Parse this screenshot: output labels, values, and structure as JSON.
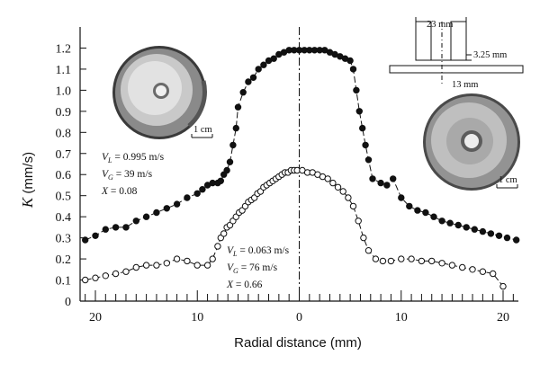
{
  "chart_data": {
    "type": "scatter",
    "xlabel": "Radial distance (mm)",
    "ylabel": "K (mm/s)",
    "ylabel_symbol": "K",
    "ylabel_unit": "(mm/s)",
    "xlim": [
      -21.5,
      21.5
    ],
    "ylim": [
      0,
      1.3
    ],
    "x_tick_values": [
      -20,
      -10,
      0,
      10,
      20
    ],
    "x_tick_labels": [
      "20",
      "10",
      "0",
      "10",
      "20"
    ],
    "x_minor_step": 1,
    "y_ticks": [
      0,
      0.1,
      0.2,
      0.3,
      0.4,
      0.5,
      0.6,
      0.7,
      0.8,
      0.9,
      1.0,
      1.1,
      1.2
    ],
    "y_tick_labels": [
      "0",
      "0.1",
      "0.2",
      "0.3",
      "0.4",
      "0.5",
      "0.6",
      "0.7",
      "0.8",
      "0.9",
      "1.0",
      "1.1",
      "1.2"
    ],
    "grid": false,
    "center_line_x": 0,
    "series": [
      {
        "marker": "filled-circle",
        "x": [
          -21.0,
          -20.0,
          -19.0,
          -18.0,
          -17.0,
          -16.0,
          -15.0,
          -14.0,
          -13.0,
          -12.0,
          -11.0,
          -10.0,
          -9.5,
          -9.0,
          -8.5,
          -8.0,
          -7.7,
          -7.4,
          -7.1,
          -6.8,
          -6.5,
          -6.2,
          -6.0,
          -5.5,
          -5.0,
          -4.5,
          -4.0,
          -3.5,
          -3.0,
          -2.5,
          -2.0,
          -1.5,
          -1.0,
          -0.5,
          0.0,
          0.5,
          1.0,
          1.5,
          2.0,
          2.5,
          3.0,
          3.5,
          4.0,
          4.5,
          5.0,
          5.3,
          5.6,
          5.9,
          6.2,
          6.5,
          6.8,
          7.2,
          8.0,
          8.6,
          9.2,
          10.0,
          10.8,
          11.6,
          12.4,
          13.2,
          14.0,
          14.8,
          15.6,
          16.4,
          17.2,
          18.0,
          18.8,
          19.6,
          20.4,
          21.3
        ],
        "y": [
          0.29,
          0.31,
          0.34,
          0.35,
          0.35,
          0.38,
          0.4,
          0.42,
          0.44,
          0.46,
          0.49,
          0.51,
          0.53,
          0.55,
          0.56,
          0.56,
          0.57,
          0.6,
          0.62,
          0.66,
          0.74,
          0.82,
          0.92,
          0.99,
          1.04,
          1.06,
          1.1,
          1.12,
          1.14,
          1.15,
          1.17,
          1.18,
          1.19,
          1.19,
          1.19,
          1.19,
          1.19,
          1.19,
          1.19,
          1.19,
          1.18,
          1.17,
          1.16,
          1.15,
          1.14,
          1.1,
          1.0,
          0.9,
          0.82,
          0.74,
          0.67,
          0.58,
          0.56,
          0.55,
          0.58,
          0.49,
          0.45,
          0.43,
          0.42,
          0.4,
          0.38,
          0.37,
          0.36,
          0.35,
          0.34,
          0.33,
          0.32,
          0.31,
          0.3,
          0.29
        ]
      },
      {
        "marker": "open-circle",
        "x": [
          -21.0,
          -20.0,
          -19.0,
          -18.0,
          -17.0,
          -16.0,
          -15.0,
          -14.0,
          -13.0,
          -12.0,
          -11.0,
          -10.0,
          -9.0,
          -8.5,
          -8.0,
          -7.7,
          -7.4,
          -7.1,
          -6.8,
          -6.5,
          -6.2,
          -5.9,
          -5.6,
          -5.3,
          -5.0,
          -4.7,
          -4.4,
          -4.1,
          -3.8,
          -3.5,
          -3.2,
          -2.9,
          -2.6,
          -2.3,
          -2.0,
          -1.7,
          -1.4,
          -1.1,
          -0.8,
          -0.5,
          -0.2,
          0.3,
          0.8,
          1.3,
          1.8,
          2.3,
          2.8,
          3.3,
          3.8,
          4.3,
          4.8,
          5.3,
          5.8,
          6.3,
          6.8,
          7.5,
          8.2,
          9.0,
          10.0,
          11.0,
          12.0,
          13.0,
          14.0,
          15.0,
          16.0,
          17.0,
          18.0,
          19.0,
          20.0
        ],
        "y": [
          0.1,
          0.11,
          0.12,
          0.13,
          0.14,
          0.16,
          0.17,
          0.17,
          0.18,
          0.2,
          0.19,
          0.17,
          0.17,
          0.2,
          0.26,
          0.3,
          0.32,
          0.35,
          0.36,
          0.38,
          0.4,
          0.42,
          0.43,
          0.45,
          0.47,
          0.48,
          0.49,
          0.51,
          0.52,
          0.54,
          0.55,
          0.56,
          0.57,
          0.58,
          0.59,
          0.6,
          0.61,
          0.61,
          0.62,
          0.62,
          0.62,
          0.62,
          0.61,
          0.61,
          0.6,
          0.59,
          0.58,
          0.56,
          0.54,
          0.52,
          0.49,
          0.45,
          0.38,
          0.3,
          0.24,
          0.2,
          0.19,
          0.19,
          0.2,
          0.2,
          0.19,
          0.19,
          0.18,
          0.17,
          0.16,
          0.15,
          0.14,
          0.13,
          0.07
        ]
      }
    ],
    "annotations": {
      "upper": [
        {
          "sym": "V",
          "sub": "L",
          "text": " = 0.995 m/s"
        },
        {
          "sym": "V",
          "sub": "G",
          "text": " = 39 m/s"
        },
        {
          "sym": "X",
          "sub": "",
          "text": " = 0.08"
        }
      ],
      "lower": [
        {
          "sym": "V",
          "sub": "L",
          "text": " = 0.063 m/s"
        },
        {
          "sym": "V",
          "sub": "G",
          "text": " = 76 m/s"
        },
        {
          "sym": "X",
          "sub": "",
          "text": " = 0.66"
        }
      ]
    },
    "scale_bar_label": "1 cm",
    "schematic_labels": [
      "23 mm",
      "3.25 mm",
      "13 mm"
    ]
  }
}
